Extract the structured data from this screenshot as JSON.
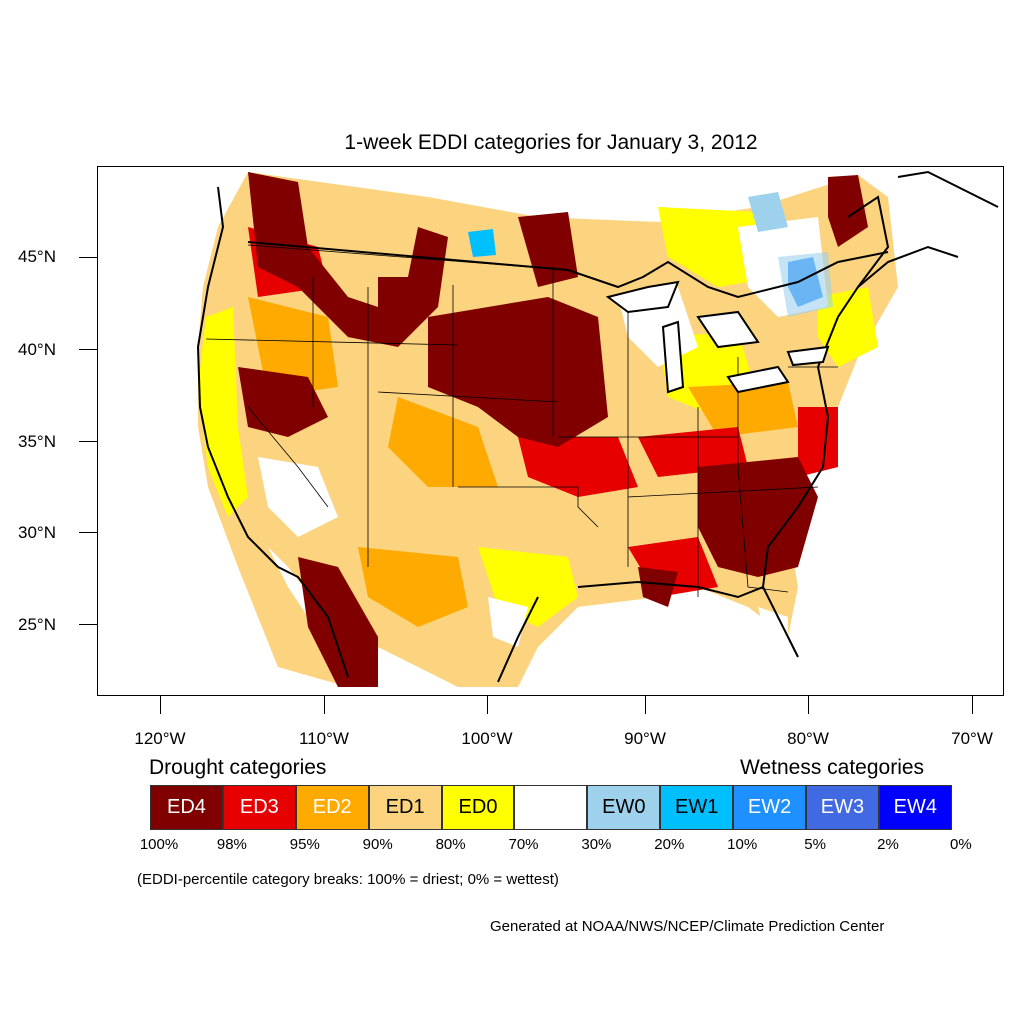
{
  "title": "1-week EDDI categories for January 3, 2012",
  "lat_labels": [
    "45°N",
    "40°N",
    "35°N",
    "30°N",
    "25°N"
  ],
  "lon_labels": [
    "120°W",
    "110°W",
    "100°W",
    "90°W",
    "80°W",
    "70°W"
  ],
  "drought_title": "Drought categories",
  "wetness_title": "Wetness categories",
  "categories": [
    {
      "label": "ED4",
      "color": "#800000",
      "text_color": "#ffffff"
    },
    {
      "label": "ED3",
      "color": "#e60000",
      "text_color": "#ffffff"
    },
    {
      "label": "ED2",
      "color": "#ffaa00",
      "text_color": "#ffffff"
    },
    {
      "label": "ED1",
      "color": "#fcd37f",
      "text_color": "#000000"
    },
    {
      "label": "ED0",
      "color": "#ffff00",
      "text_color": "#000000"
    },
    {
      "label": "",
      "color": "#ffffff",
      "text_color": "#000000"
    },
    {
      "label": "EW0",
      "color": "#9dd1ec",
      "text_color": "#000000"
    },
    {
      "label": "EW1",
      "color": "#00bfff",
      "text_color": "#000000"
    },
    {
      "label": "EW2",
      "color": "#1e90ff",
      "text_color": "#ffffff"
    },
    {
      "label": "EW3",
      "color": "#4169e1",
      "text_color": "#ffffff"
    },
    {
      "label": "EW4",
      "color": "#0000ff",
      "text_color": "#ffffff"
    }
  ],
  "percent_breaks": [
    "100%",
    "98%",
    "95%",
    "90%",
    "80%",
    "70%",
    "30%",
    "20%",
    "10%",
    "5%",
    "2%",
    "0%"
  ],
  "note": "(EDDI-percentile category breaks: 100% = driest; 0% = wettest)",
  "credit": "Generated at NOAA/NWS/NCEP/Climate Prediction Center"
}
